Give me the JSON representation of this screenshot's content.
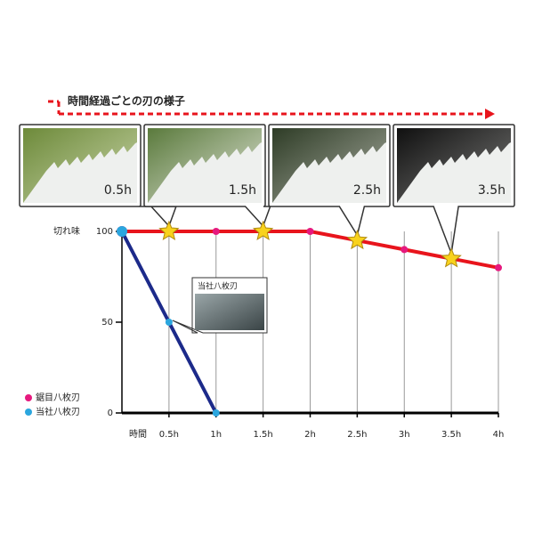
{
  "chart_data": {
    "type": "line",
    "title": "時間経過ごとの刃の様子",
    "ylabel": "切れ味",
    "xlabel": "時間",
    "xlim": [
      0,
      4
    ],
    "ylim": [
      0,
      100
    ],
    "xticks": [
      {
        "value": 0.5,
        "label": "0.5h"
      },
      {
        "value": 1,
        "label": "1h"
      },
      {
        "value": 1.5,
        "label": "1.5h"
      },
      {
        "value": 2,
        "label": "2h"
      },
      {
        "value": 2.5,
        "label": "2.5h"
      },
      {
        "value": 3,
        "label": "3h"
      },
      {
        "value": 3.5,
        "label": "3.5h"
      },
      {
        "value": 4,
        "label": "4h"
      }
    ],
    "yticks": [
      0,
      50,
      100
    ],
    "grid": true,
    "series": [
      {
        "name": "鋸目八枚刃",
        "color": "#e8141c",
        "marker_color": "#e6197e",
        "x": [
          0,
          0.5,
          1,
          1.5,
          2,
          2.5,
          3,
          3.5,
          4
        ],
        "values": [
          100,
          100,
          100,
          100,
          100,
          95,
          90,
          85,
          80
        ]
      },
      {
        "name": "当社八枚刃",
        "color": "#1c2a8a",
        "marker_color": "#2ba6de",
        "x": [
          0,
          0.5,
          1
        ],
        "values": [
          100,
          50,
          0
        ]
      }
    ],
    "photos": [
      {
        "x": 0.5,
        "label": "0.5h"
      },
      {
        "x": 1.5,
        "label": "1.5h"
      },
      {
        "x": 2.5,
        "label": "2.5h"
      },
      {
        "x": 3.5,
        "label": "3.5h"
      }
    ],
    "inset": {
      "x": 0.5,
      "label": "当社八枚刃"
    }
  }
}
